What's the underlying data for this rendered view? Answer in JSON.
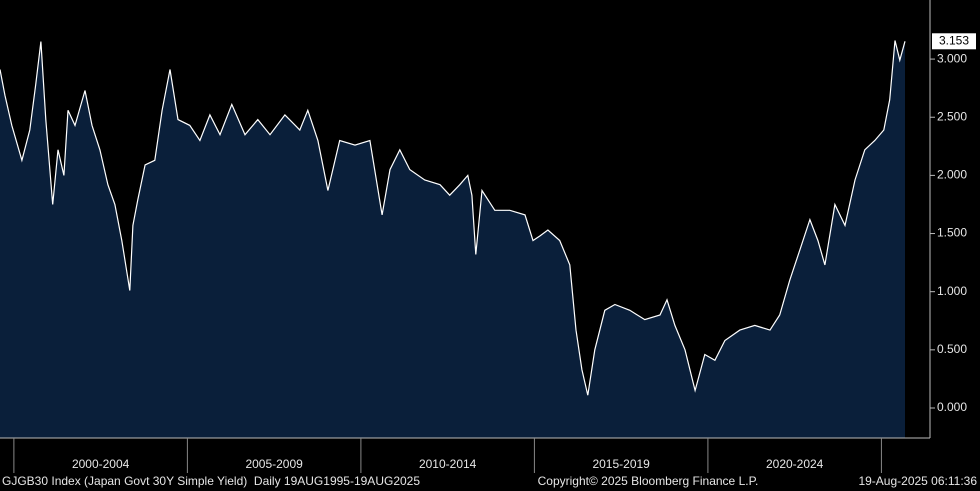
{
  "chart_data": {
    "type": "area",
    "series": [
      {
        "name": "GJGB30 Index",
        "color": "#ffffff",
        "fill": "#0a1f3a",
        "x": [
          1999.6,
          1999.74,
          1999.94,
          2000.23,
          2000.46,
          2000.63,
          2000.78,
          2000.92,
          2001.12,
          2001.27,
          2001.44,
          2001.56,
          2001.76,
          2002.05,
          2002.25,
          2002.48,
          2002.71,
          2002.91,
          2003.11,
          2003.34,
          2003.43,
          2003.57,
          2003.78,
          2004.06,
          2004.27,
          2004.5,
          2004.73,
          2005.07,
          2005.36,
          2005.65,
          2005.94,
          2006.28,
          2006.66,
          2007.03,
          2007.38,
          2007.81,
          2008.24,
          2008.47,
          2008.76,
          2009.05,
          2009.39,
          2009.83,
          2010.26,
          2010.61,
          2010.84,
          2011.12,
          2011.41,
          2011.84,
          2012.28,
          2012.56,
          2012.85,
          2013.08,
          2013.2,
          2013.31,
          2013.49,
          2013.86,
          2014.29,
          2014.73,
          2014.96,
          2015.16,
          2015.39,
          2015.73,
          2016.02,
          2016.2,
          2016.37,
          2016.54,
          2016.74,
          2017.03,
          2017.32,
          2017.75,
          2018.18,
          2018.62,
          2018.82,
          2019.05,
          2019.34,
          2019.63,
          2019.91,
          2020.2,
          2020.49,
          2020.92,
          2021.35,
          2021.79,
          2022.07,
          2022.36,
          2022.65,
          2022.94,
          2023.17,
          2023.37,
          2023.66,
          2023.95,
          2024.24,
          2024.52,
          2024.81,
          2025.07,
          2025.24,
          2025.39,
          2025.53,
          2025.68
        ],
        "values": [
          2.91,
          2.69,
          2.43,
          2.13,
          2.39,
          2.78,
          3.15,
          2.48,
          1.75,
          2.22,
          2.0,
          2.56,
          2.43,
          2.73,
          2.43,
          2.22,
          1.92,
          1.75,
          1.44,
          1.01,
          1.57,
          1.79,
          2.09,
          2.13,
          2.56,
          2.91,
          2.48,
          2.43,
          2.3,
          2.52,
          2.35,
          2.61,
          2.35,
          2.48,
          2.35,
          2.52,
          2.39,
          2.56,
          2.3,
          1.87,
          2.3,
          2.26,
          2.3,
          1.66,
          2.05,
          2.22,
          2.05,
          1.96,
          1.92,
          1.83,
          1.92,
          2.0,
          1.83,
          1.32,
          1.87,
          1.7,
          1.7,
          1.66,
          1.44,
          1.48,
          1.53,
          1.44,
          1.23,
          0.67,
          0.33,
          0.11,
          0.5,
          0.84,
          0.89,
          0.84,
          0.76,
          0.8,
          0.93,
          0.71,
          0.5,
          0.15,
          0.46,
          0.41,
          0.58,
          0.67,
          0.71,
          0.67,
          0.8,
          1.1,
          1.36,
          1.62,
          1.44,
          1.23,
          1.75,
          1.57,
          1.96,
          2.22,
          2.3,
          2.39,
          2.65,
          3.16,
          2.99,
          3.153
        ]
      }
    ],
    "xlim": [
      1999.6,
      2026.4
    ],
    "ylim": [
      -0.258,
      3.508
    ],
    "yticks": [
      {
        "value": 0,
        "label": "0.000"
      },
      {
        "value": 0.5,
        "label": "0.500"
      },
      {
        "value": 1,
        "label": "1.000"
      },
      {
        "value": 1.5,
        "label": "1.500"
      },
      {
        "value": 2,
        "label": "2.000"
      },
      {
        "value": 2.5,
        "label": "2.500"
      },
      {
        "value": 3,
        "label": "3.000"
      }
    ],
    "xbands": [
      {
        "label": "2000-2004",
        "from": 2000,
        "to": 2005
      },
      {
        "label": "2005-2009",
        "from": 2005,
        "to": 2010
      },
      {
        "label": "2010-2014",
        "from": 2010,
        "to": 2015
      },
      {
        "label": "2015-2019",
        "from": 2015,
        "to": 2020
      },
      {
        "label": "2020-2024",
        "from": 2020,
        "to": 2025
      }
    ],
    "footer": {
      "left": "GJGB30 Index (Japan Govt 30Y Simple Yield)  Daily 19AUG1995-19AUG2025",
      "center": "Copyright© 2025 Bloomberg Finance L.P.",
      "right": "19-Aug-2025 06:11:36"
    }
  }
}
